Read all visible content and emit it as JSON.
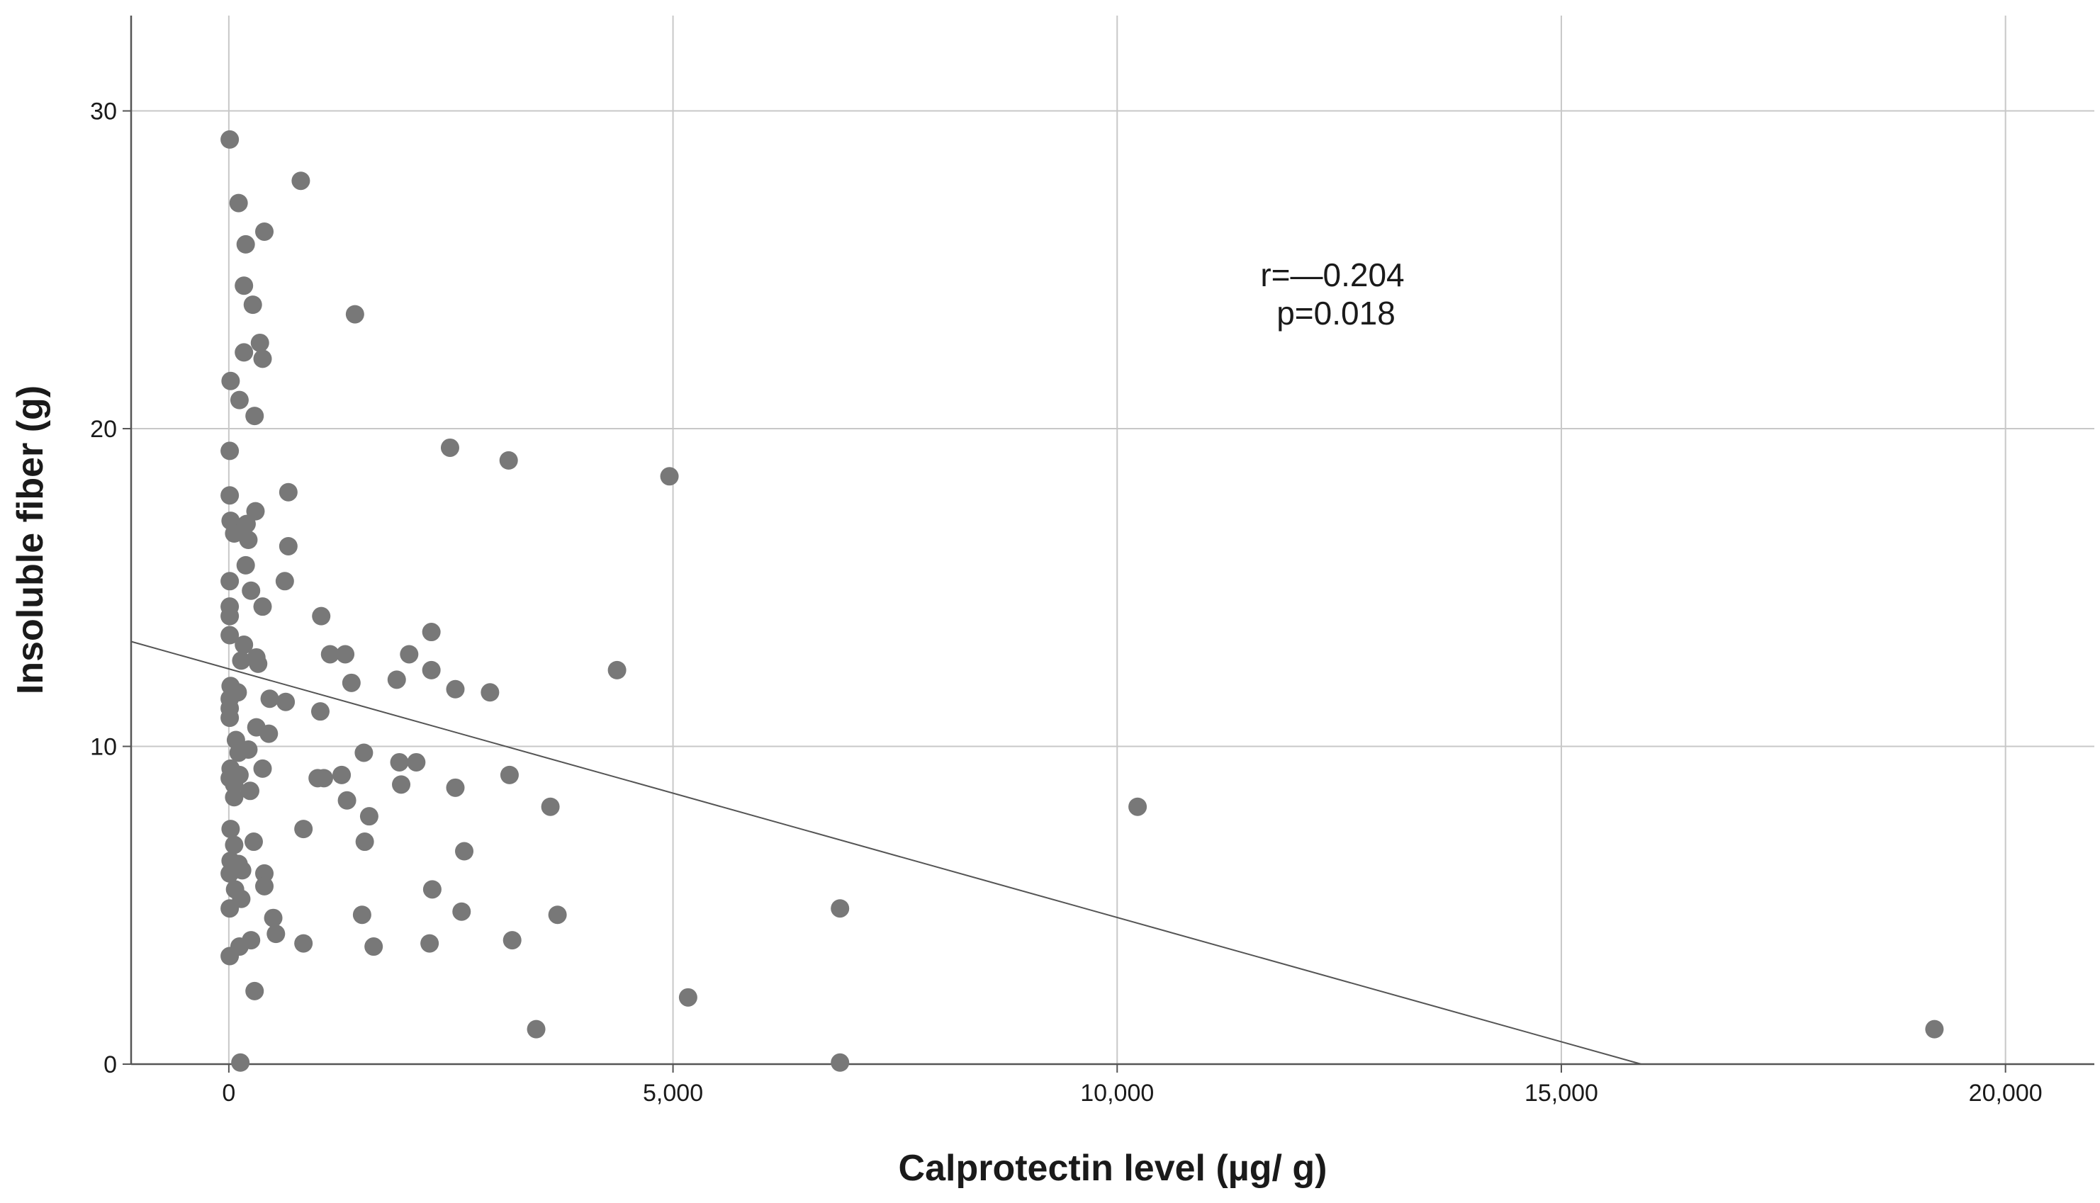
{
  "chart_data": {
    "type": "scatter",
    "title": "",
    "xlabel": "Calprotectin level (µg/ g)",
    "ylabel": "Insoluble fiber (g)",
    "xlim": [
      -1100,
      21000
    ],
    "ylim": [
      0,
      33
    ],
    "xticks": [
      0,
      5000,
      10000,
      15000,
      20000
    ],
    "xtick_labels": [
      "0",
      "5,000",
      "10,000",
      "15,000",
      "20,000"
    ],
    "yticks": [
      0,
      10,
      20,
      30
    ],
    "ytick_labels": [
      "0",
      "10",
      "20",
      "30"
    ],
    "grid": true,
    "annotations": [
      "r=—0.204",
      "p=0.018"
    ],
    "fit_line": {
      "x": [
        -1100,
        15900
      ],
      "y": [
        13.3,
        0
      ]
    },
    "point_color": "#787878",
    "series": [
      {
        "points": [
          [
            10,
            29.1
          ],
          [
            110,
            27.1
          ],
          [
            810,
            27.8
          ],
          [
            190,
            25.8
          ],
          [
            400,
            26.2
          ],
          [
            170,
            24.5
          ],
          [
            270,
            23.9
          ],
          [
            1420,
            23.6
          ],
          [
            350,
            22.7
          ],
          [
            170,
            22.4
          ],
          [
            380,
            22.2
          ],
          [
            20,
            21.5
          ],
          [
            120,
            20.9
          ],
          [
            290,
            20.4
          ],
          [
            10,
            19.3
          ],
          [
            2490,
            19.4
          ],
          [
            3150,
            19.0
          ],
          [
            4960,
            18.5
          ],
          [
            10,
            17.9
          ],
          [
            670,
            18.0
          ],
          [
            300,
            17.4
          ],
          [
            20,
            17.1
          ],
          [
            200,
            17.0
          ],
          [
            60,
            16.7
          ],
          [
            220,
            16.5
          ],
          [
            670,
            16.3
          ],
          [
            190,
            15.7
          ],
          [
            10,
            15.2
          ],
          [
            630,
            15.2
          ],
          [
            250,
            14.9
          ],
          [
            10,
            14.4
          ],
          [
            380,
            14.4
          ],
          [
            10,
            14.1
          ],
          [
            1040,
            14.1
          ],
          [
            2280,
            13.6
          ],
          [
            10,
            13.5
          ],
          [
            170,
            13.2
          ],
          [
            310,
            12.8
          ],
          [
            140,
            12.7
          ],
          [
            330,
            12.6
          ],
          [
            1140,
            12.9
          ],
          [
            1310,
            12.9
          ],
          [
            2030,
            12.9
          ],
          [
            4370,
            12.4
          ],
          [
            2280,
            12.4
          ],
          [
            1380,
            12.0
          ],
          [
            1890,
            12.1
          ],
          [
            20,
            11.9
          ],
          [
            2550,
            11.8
          ],
          [
            2940,
            11.7
          ],
          [
            100,
            11.7
          ],
          [
            10,
            11.5
          ],
          [
            460,
            11.5
          ],
          [
            640,
            11.4
          ],
          [
            10,
            11.2
          ],
          [
            1030,
            11.1
          ],
          [
            10,
            10.9
          ],
          [
            310,
            10.6
          ],
          [
            450,
            10.4
          ],
          [
            80,
            10.2
          ],
          [
            220,
            9.9
          ],
          [
            110,
            9.8
          ],
          [
            1520,
            9.8
          ],
          [
            1920,
            9.5
          ],
          [
            2110,
            9.5
          ],
          [
            20,
            9.3
          ],
          [
            380,
            9.3
          ],
          [
            120,
            9.1
          ],
          [
            1000,
            9.0
          ],
          [
            1270,
            9.1
          ],
          [
            3160,
            9.1
          ],
          [
            10,
            9.0
          ],
          [
            1070,
            9.0
          ],
          [
            60,
            8.8
          ],
          [
            240,
            8.6
          ],
          [
            1940,
            8.8
          ],
          [
            2550,
            8.7
          ],
          [
            60,
            8.4
          ],
          [
            1330,
            8.3
          ],
          [
            10230,
            8.1
          ],
          [
            3620,
            8.1
          ],
          [
            1580,
            7.8
          ],
          [
            20,
            7.4
          ],
          [
            840,
            7.4
          ],
          [
            280,
            7.0
          ],
          [
            60,
            6.9
          ],
          [
            1530,
            7.0
          ],
          [
            2650,
            6.7
          ],
          [
            20,
            6.4
          ],
          [
            110,
            6.3
          ],
          [
            150,
            6.1
          ],
          [
            10,
            6.0
          ],
          [
            400,
            6.0
          ],
          [
            70,
            5.5
          ],
          [
            400,
            5.6
          ],
          [
            2290,
            5.5
          ],
          [
            140,
            5.2
          ],
          [
            10,
            4.9
          ],
          [
            6880,
            4.9
          ],
          [
            500,
            4.6
          ],
          [
            1500,
            4.7
          ],
          [
            2620,
            4.8
          ],
          [
            3700,
            4.7
          ],
          [
            530,
            4.1
          ],
          [
            120,
            3.7
          ],
          [
            250,
            3.9
          ],
          [
            840,
            3.8
          ],
          [
            1630,
            3.7
          ],
          [
            2260,
            3.8
          ],
          [
            3190,
            3.9
          ],
          [
            10,
            3.4
          ],
          [
            290,
            2.3
          ],
          [
            5170,
            2.1
          ],
          [
            3460,
            1.1
          ],
          [
            19200,
            1.1
          ],
          [
            130,
            0.05
          ],
          [
            6880,
            0.05
          ]
        ]
      }
    ]
  }
}
